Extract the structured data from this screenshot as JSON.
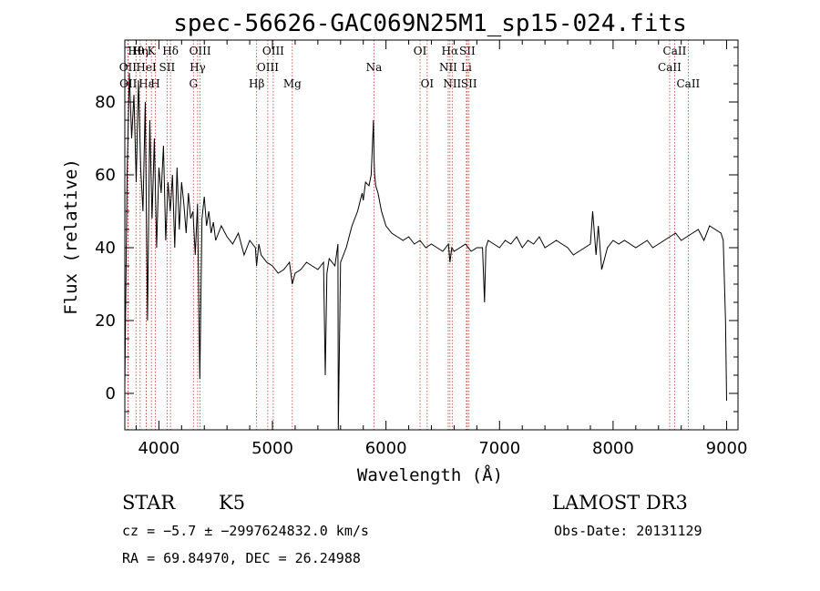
{
  "chart_data": {
    "type": "line",
    "title": "spec-56626-GAC069N25M1_sp15-024.fits",
    "xlabel": "Wavelength (Å)",
    "ylabel": "Flux (relative)",
    "xlim": [
      3700,
      9100
    ],
    "ylim": [
      -10,
      97
    ],
    "xticks": [
      4000,
      5000,
      6000,
      7000,
      8000,
      9000
    ],
    "yticks": [
      0,
      20,
      40,
      60,
      80
    ],
    "grid": false,
    "series": [
      {
        "name": "flux",
        "x": [
          3700,
          3720,
          3740,
          3760,
          3780,
          3800,
          3820,
          3840,
          3860,
          3880,
          3900,
          3920,
          3940,
          3960,
          3980,
          4000,
          4020,
          4040,
          4060,
          4080,
          4100,
          4120,
          4140,
          4160,
          4180,
          4200,
          4220,
          4240,
          4260,
          4280,
          4300,
          4320,
          4340,
          4360,
          4380,
          4400,
          4420,
          4440,
          4460,
          4480,
          4500,
          4550,
          4600,
          4650,
          4700,
          4750,
          4800,
          4850,
          4860,
          4880,
          4900,
          4950,
          5000,
          5050,
          5100,
          5150,
          5175,
          5200,
          5250,
          5300,
          5350,
          5400,
          5450,
          5465,
          5480,
          5500,
          5550,
          5577,
          5580,
          5600,
          5650,
          5700,
          5750,
          5790,
          5800,
          5820,
          5850,
          5870,
          5890,
          5895,
          5900,
          5910,
          5930,
          5960,
          6000,
          6050,
          6100,
          6150,
          6200,
          6250,
          6300,
          6350,
          6400,
          6450,
          6500,
          6550,
          6563,
          6580,
          6600,
          6650,
          6700,
          6750,
          6800,
          6850,
          6868,
          6880,
          6900,
          6950,
          7000,
          7050,
          7100,
          7150,
          7200,
          7250,
          7300,
          7350,
          7400,
          7450,
          7500,
          7550,
          7600,
          7650,
          7700,
          7750,
          7800,
          7820,
          7850,
          7870,
          7900,
          7950,
          8000,
          8050,
          8100,
          8150,
          8200,
          8250,
          8300,
          8350,
          8400,
          8450,
          8500,
          8550,
          8600,
          8650,
          8700,
          8750,
          8800,
          8850,
          8900,
          8950,
          8970,
          8990,
          9000
        ],
        "y": [
          2,
          60,
          88,
          70,
          82,
          58,
          86,
          62,
          50,
          80,
          20,
          75,
          48,
          70,
          40,
          62,
          55,
          68,
          42,
          58,
          50,
          60,
          40,
          62,
          45,
          58,
          52,
          44,
          55,
          48,
          50,
          38,
          52,
          4,
          48,
          54,
          46,
          50,
          44,
          47,
          42,
          46,
          43,
          41,
          44,
          38,
          42,
          40,
          35,
          41,
          38,
          36,
          35,
          33,
          34,
          36,
          30,
          33,
          34,
          36,
          35,
          34,
          36,
          5,
          33,
          37,
          35,
          41,
          -10,
          36,
          40,
          46,
          50,
          55,
          53,
          58,
          57,
          60,
          75,
          64,
          60,
          57,
          55,
          50,
          46,
          44,
          43,
          42,
          43,
          41,
          42,
          40,
          41,
          40,
          39,
          41,
          36,
          40,
          39,
          40,
          41,
          39,
          40,
          40,
          25,
          40,
          42,
          41,
          40,
          42,
          41,
          43,
          40,
          42,
          41,
          43,
          40,
          41,
          42,
          41,
          40,
          38,
          39,
          40,
          41,
          50,
          38,
          46,
          34,
          40,
          42,
          41,
          42,
          41,
          40,
          41,
          42,
          40,
          41,
          42,
          43,
          44,
          42,
          43,
          44,
          45,
          42,
          46,
          45,
          44,
          42,
          20,
          -2
        ]
      }
    ],
    "lines": [
      {
        "name": "Hθ",
        "x": 3798,
        "row": 0
      },
      {
        "name": "OII",
        "x": 3727,
        "row": 1
      },
      {
        "name": "OII",
        "x": 3730,
        "row": 2
      },
      {
        "name": "Hη",
        "x": 3835,
        "row": 0
      },
      {
        "name": "Hε",
        "x": 3889,
        "row": 2
      },
      {
        "name": "HeI",
        "x": 3889,
        "row": 1
      },
      {
        "name": "K",
        "x": 3934,
        "row": 0
      },
      {
        "name": "H",
        "x": 3969,
        "row": 2
      },
      {
        "name": "SII",
        "x": 4072,
        "row": 1
      },
      {
        "name": "Hδ",
        "x": 4102,
        "row": 0
      },
      {
        "name": "G",
        "x": 4304,
        "row": 2
      },
      {
        "name": "Hγ",
        "x": 4341,
        "row": 1
      },
      {
        "name": "OIII",
        "x": 4363,
        "row": 0
      },
      {
        "name": "Hβ",
        "x": 4861,
        "row": 2
      },
      {
        "name": "OIII",
        "x": 4959,
        "row": 1
      },
      {
        "name": "OIII",
        "x": 5007,
        "row": 0
      },
      {
        "name": "Mg",
        "x": 5175,
        "row": 2
      },
      {
        "name": "Na",
        "x": 5894,
        "row": 1
      },
      {
        "name": "OI",
        "x": 6300,
        "row": 0
      },
      {
        "name": "OI",
        "x": 6363,
        "row": 2
      },
      {
        "name": "Hα",
        "x": 6563,
        "row": 0
      },
      {
        "name": "NII",
        "x": 6548,
        "row": 1
      },
      {
        "name": "NII",
        "x": 6583,
        "row": 2
      },
      {
        "name": "SII",
        "x": 6716,
        "row": 0
      },
      {
        "name": "Li",
        "x": 6708,
        "row": 1
      },
      {
        "name": "SII",
        "x": 6731,
        "row": 2
      },
      {
        "name": "CaII",
        "x": 8542,
        "row": 0
      },
      {
        "name": "CaII",
        "x": 8498,
        "row": 1
      },
      {
        "name": "CaII",
        "x": 8662,
        "row": 2
      }
    ]
  },
  "info": {
    "object_class": "STAR",
    "subclass": "K5",
    "survey": "LAMOST DR3",
    "cz": "cz = −5.7 ± −2997624832.0 km/s",
    "obs_date": "Obs-Date: 20131129",
    "coords": "RA =  69.84970, DEC =  26.24988"
  },
  "colors": {
    "spectrum": "#000000",
    "line_marker": "#c0392b",
    "axes": "#000000"
  }
}
